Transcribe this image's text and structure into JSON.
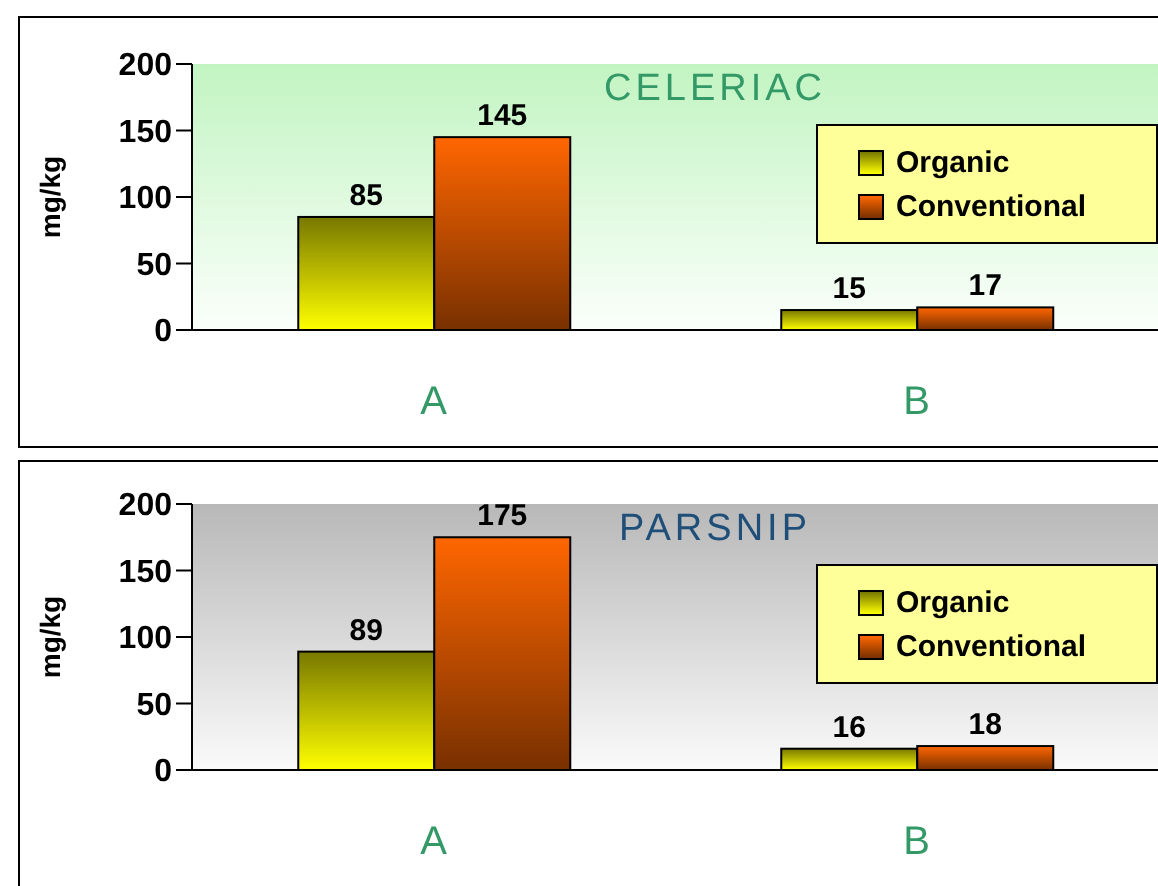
{
  "chart_data": [
    {
      "type": "bar",
      "title": "CELERIAC",
      "categories": [
        "A",
        "B"
      ],
      "ylabel": "mg/kg",
      "series": [
        {
          "name": "Organic",
          "color": "#ffff00",
          "values": [
            85,
            15
          ]
        },
        {
          "name": "Conventional",
          "color": "#ff6600",
          "values": [
            145,
            17
          ]
        }
      ],
      "ylim": [
        0,
        200
      ],
      "yticks": [
        0,
        50,
        100,
        150,
        200
      ],
      "data_labels": true,
      "legend": "right"
    },
    {
      "type": "bar",
      "title": "PARSNIP",
      "categories": [
        "A",
        "B"
      ],
      "ylabel": "mg/kg",
      "series": [
        {
          "name": "Organic",
          "color": "#ffff00",
          "values": [
            89,
            16
          ]
        },
        {
          "name": "Conventional",
          "color": "#ff6600",
          "values": [
            175,
            18
          ]
        }
      ],
      "ylim": [
        0,
        200
      ],
      "yticks": [
        0,
        50,
        100,
        150,
        200
      ],
      "data_labels": true,
      "legend": "right"
    }
  ]
}
